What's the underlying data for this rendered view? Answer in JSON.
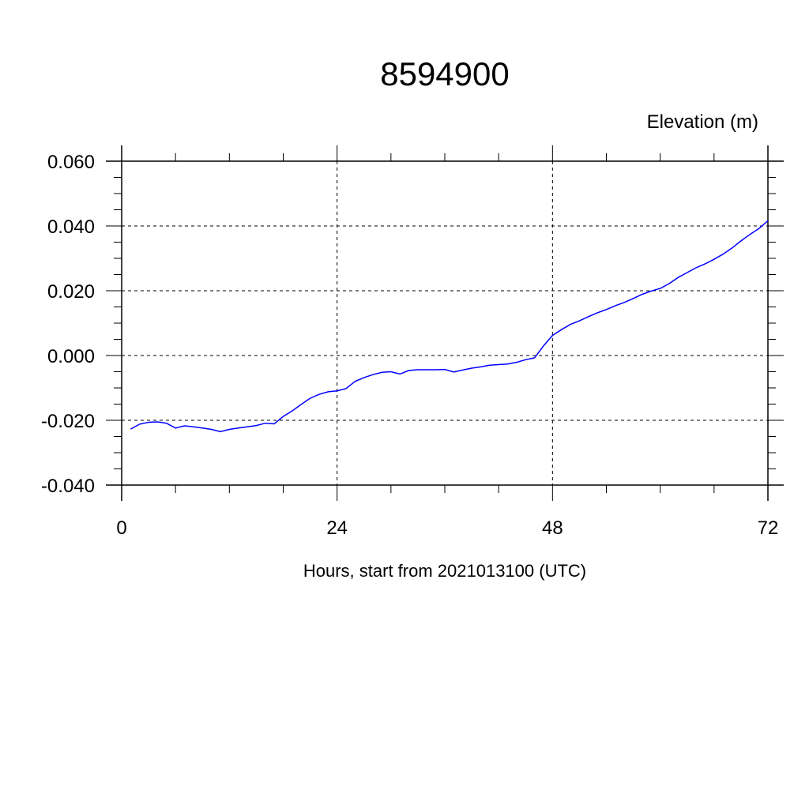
{
  "chart_data": {
    "type": "line",
    "title": "8594900",
    "ylabel": "Elevation (m)",
    "xlabel": "Hours, start from 2021013100 (UTC)",
    "xlim": [
      0,
      72
    ],
    "ylim": [
      -0.04,
      0.06
    ],
    "x_ticks": [
      0,
      24,
      48,
      72
    ],
    "x_tick_labels": [
      "0",
      "24",
      "48",
      "72"
    ],
    "x_minor_step": 6,
    "y_ticks": [
      -0.04,
      -0.02,
      0.0,
      0.02,
      0.04,
      0.06
    ],
    "y_tick_labels": [
      "-0.040",
      "-0.020",
      "0.000",
      "0.020",
      "0.040",
      "0.060"
    ],
    "y_minor_step": 0.005,
    "grid": true,
    "line_color": "#0000ff",
    "series": [
      {
        "x": [
          1,
          2,
          3,
          4,
          5,
          6,
          7,
          8,
          9,
          10,
          11,
          12,
          13,
          14,
          15,
          16,
          17,
          18,
          19,
          20,
          21,
          22,
          23,
          24,
          25,
          26,
          27,
          28,
          29,
          30,
          31,
          32,
          33,
          34,
          35,
          36,
          37,
          38,
          39,
          40,
          41,
          42,
          43,
          44,
          45,
          46,
          47,
          48,
          49,
          50,
          51,
          52,
          53,
          54,
          55,
          56,
          57,
          58,
          59,
          60,
          61,
          62,
          63,
          64,
          65,
          66,
          67,
          68,
          69,
          70,
          71,
          72
        ],
        "values": [
          -0.0227,
          -0.0212,
          -0.0206,
          -0.0205,
          -0.0209,
          -0.0224,
          -0.0217,
          -0.022,
          -0.0224,
          -0.0228,
          -0.0235,
          -0.0228,
          -0.0224,
          -0.022,
          -0.0216,
          -0.0209,
          -0.0211,
          -0.0188,
          -0.0171,
          -0.0151,
          -0.0132,
          -0.012,
          -0.0112,
          -0.0109,
          -0.0102,
          -0.008,
          -0.0068,
          -0.0059,
          -0.0052,
          -0.005,
          -0.0057,
          -0.0046,
          -0.0044,
          -0.0044,
          -0.0044,
          -0.0043,
          -0.0051,
          -0.0045,
          -0.0039,
          -0.0035,
          -0.003,
          -0.0028,
          -0.0026,
          -0.0021,
          -0.0013,
          -0.0007,
          0.003,
          0.0062,
          0.008,
          0.0096,
          0.0107,
          0.012,
          0.0132,
          0.0142,
          0.0154,
          0.0164,
          0.0176,
          0.0189,
          0.0199,
          0.0207,
          0.0222,
          0.0241,
          0.0256,
          0.0271,
          0.0283,
          0.0297,
          0.0313,
          0.0332,
          0.0354,
          0.0374,
          0.0392,
          0.0416
        ]
      }
    ]
  }
}
